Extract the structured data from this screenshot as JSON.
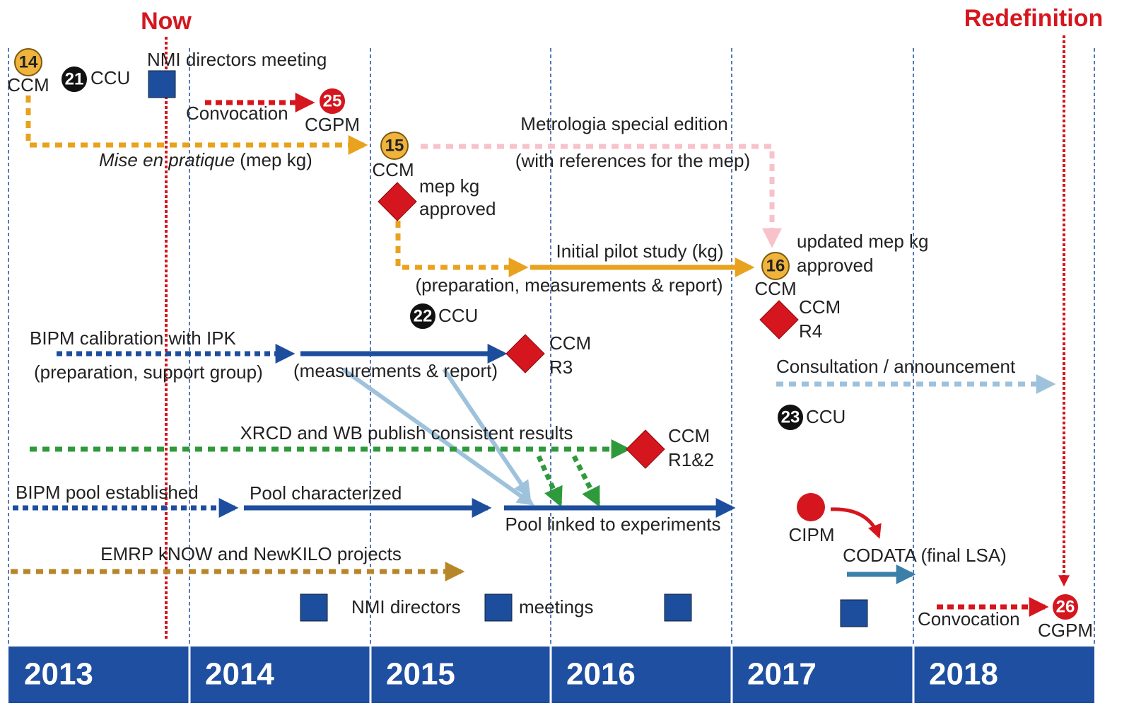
{
  "header": {
    "now": "Now",
    "redefinition": "Redefinition"
  },
  "years": [
    2013,
    2014,
    2015,
    2016,
    2017,
    2018
  ],
  "badges": [
    {
      "number": 14,
      "label": "CCM"
    },
    {
      "number": 21,
      "label": "CCU"
    },
    {
      "number": 25,
      "label": "CGPM"
    },
    {
      "number": 15,
      "label": "CCM"
    },
    {
      "number": 16,
      "label": "CCM"
    },
    {
      "number": 22,
      "label": "CCU"
    },
    {
      "number": 23,
      "label": "CCU"
    },
    {
      "number": 26,
      "label": "CGPM"
    }
  ],
  "events": [
    "NMI directors meeting",
    "Convocation",
    "Mise en pratique",
    "(mep kg)",
    "Metrologia special edition",
    "(with references for the mep)",
    "mep kg",
    "approved",
    "Initial pilot study (kg)",
    "(preparation, measurements & report)",
    "updated mep kg",
    "approved",
    "CCM",
    "R4",
    "BIPM calibration with IPK",
    "(preparation, support group)",
    "(measurements & report)",
    "CCM",
    "R3",
    "Consultation / announcement",
    "XRCD and WB publish consistent results",
    "CCM",
    "R1&2",
    "BIPM pool established",
    "Pool characterized",
    "Pool linked to experiments",
    "CIPM",
    "CODATA (final LSA)",
    "EMRP kNOW and NewKILO projects",
    "NMI directors",
    "meetings",
    "Convocation"
  ]
}
